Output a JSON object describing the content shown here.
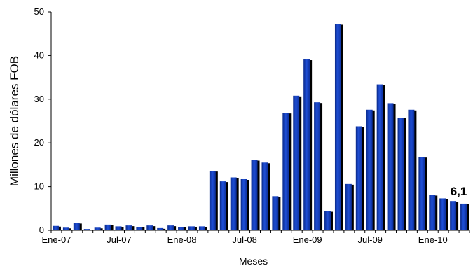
{
  "chart_data": {
    "type": "bar",
    "title": "",
    "xlabel": "Meses",
    "ylabel": "Millones de dólares FOB",
    "ylim": [
      0,
      50
    ],
    "yticks": [
      0,
      10,
      20,
      30,
      40,
      50
    ],
    "grid": false,
    "legend": "none",
    "bar_color": "#1f4fd6",
    "bar_shadow_color": "#000000",
    "x_tick_labels": [
      {
        "index": 0,
        "label": "Ene-07"
      },
      {
        "index": 6,
        "label": "Jul-07"
      },
      {
        "index": 12,
        "label": "Ene-08"
      },
      {
        "index": 18,
        "label": "Jul-08"
      },
      {
        "index": 24,
        "label": "Ene-09"
      },
      {
        "index": 30,
        "label": "Jul-09"
      },
      {
        "index": 36,
        "label": "Ene-10"
      }
    ],
    "values": [
      1.0,
      0.6,
      1.7,
      0.3,
      0.6,
      1.3,
      0.9,
      1.1,
      0.8,
      1.1,
      0.5,
      1.1,
      0.8,
      0.9,
      0.9,
      13.6,
      11.2,
      12.1,
      11.7,
      16.1,
      15.5,
      7.8,
      26.9,
      30.8,
      39.1,
      29.3,
      4.4,
      47.2,
      10.6,
      23.8,
      27.6,
      33.4,
      29.1,
      25.8,
      27.6,
      16.8,
      8.1,
      7.3,
      6.7,
      6.1
    ],
    "data_labels": [
      {
        "index": 39,
        "text": "6,1"
      }
    ]
  }
}
